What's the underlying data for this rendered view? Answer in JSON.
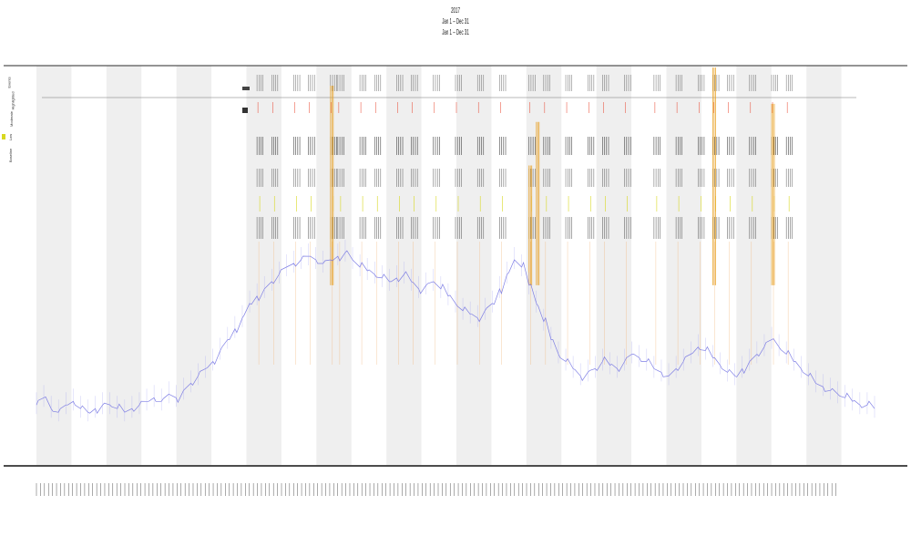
{
  "title": {
    "line1": "2017",
    "line2": "Jan 1 – Dec 31",
    "line3": "Jan 1 – Dec 31"
  },
  "legend": [
    {
      "label": "Events",
      "color": "#1a1a1a"
    },
    {
      "label": "Highlighted",
      "color": "#e8402a"
    },
    {
      "label": "Moderate",
      "color": "#e8a020"
    },
    {
      "label": "Low",
      "color": "#d8d820"
    },
    {
      "label": "Baseline",
      "color": "#6a6ae0"
    }
  ],
  "chart_data": {
    "type": "line",
    "title": "2017",
    "xlabel": "",
    "ylabel": "",
    "grid": false,
    "legend_position": "top-left",
    "band_count": 12,
    "series": [
      {
        "name": "Baseline",
        "color": "#6a6ae0",
        "values": [
          12,
          14,
          11,
          10,
          12,
          13,
          11,
          10,
          11,
          12,
          12,
          11,
          10,
          11,
          12,
          13,
          14,
          13,
          15,
          14,
          16,
          18,
          20,
          22,
          24,
          27,
          30,
          33,
          36,
          40,
          42,
          44,
          46,
          48,
          50,
          51,
          52,
          53,
          52,
          51,
          52,
          53,
          54,
          52,
          50,
          49,
          48,
          47,
          46,
          47,
          48,
          46,
          44,
          45,
          46,
          44,
          42,
          40,
          38,
          37,
          36,
          38,
          40,
          44,
          48,
          52,
          50,
          45,
          40,
          35,
          30,
          26,
          24,
          22,
          20,
          21,
          22,
          24,
          23,
          22,
          24,
          26,
          25,
          24,
          22,
          21,
          20,
          22,
          24,
          26,
          28,
          27,
          25,
          23,
          21,
          20,
          22,
          24,
          26,
          28,
          30,
          28,
          26,
          24,
          22,
          20,
          18,
          17,
          16,
          15,
          14,
          13,
          12,
          12,
          11
        ]
      },
      {
        "name": "Moderate",
        "color": "#e8a020",
        "spikes": [
          {
            "x": 40,
            "v": 60
          },
          {
            "x": 67,
            "v": 38
          },
          {
            "x": 68,
            "v": 50
          },
          {
            "x": 92,
            "v": 65
          },
          {
            "x": 100,
            "v": 55
          }
        ]
      }
    ],
    "event_columns": [
      30,
      32,
      35,
      37,
      40,
      41,
      44,
      46,
      49,
      51,
      54,
      57,
      60,
      63,
      67,
      69,
      72,
      75,
      77,
      80,
      84,
      87,
      90,
      92,
      94,
      97,
      100,
      102
    ]
  }
}
